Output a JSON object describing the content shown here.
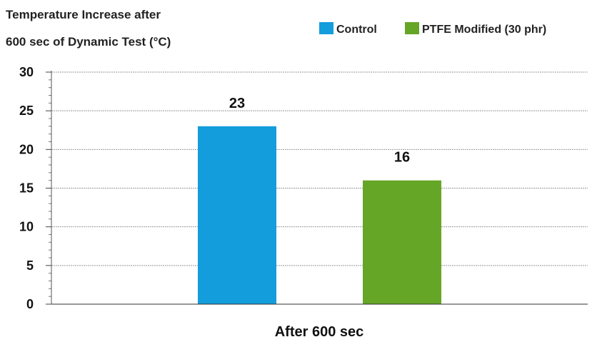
{
  "chart_data": {
    "type": "bar",
    "title_lines": [
      "Temperature Increase after",
      "600 sec of Dynamic Test (°C)"
    ],
    "categories": [
      "After 600 sec"
    ],
    "series": [
      {
        "name": "Control",
        "color": "#149ddc",
        "values": [
          23
        ]
      },
      {
        "name": "PTFE Modified (30 phr)",
        "color": "#66a626",
        "values": [
          16
        ]
      }
    ],
    "xlabel": "After 600 sec",
    "ylabel": "",
    "ylim": [
      0,
      30
    ],
    "yticks": [
      0,
      5,
      10,
      15,
      20,
      25,
      30
    ],
    "grid": true,
    "legend_position": "top-right"
  }
}
